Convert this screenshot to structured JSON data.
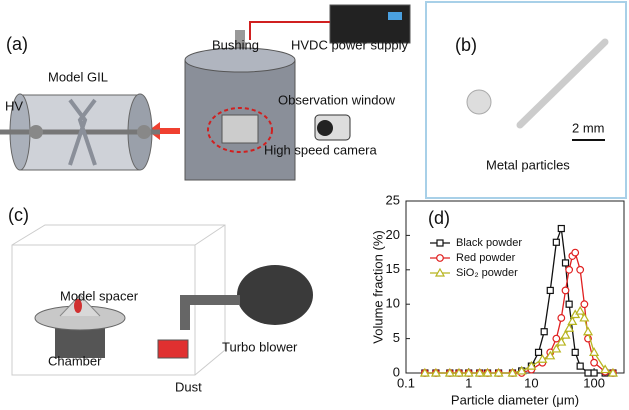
{
  "panels": {
    "a": {
      "label": "(a)",
      "bushing": "Bushing",
      "power": "HVDC power supply",
      "gil": "Model GIL",
      "hv": "HV",
      "window": "Observation window",
      "camera": "High speed camera"
    },
    "b": {
      "label": "(b)",
      "scale": "2 mm",
      "caption": "Metal particles"
    },
    "c": {
      "label": "(c)",
      "spacer": "Model spacer",
      "chamber": "Chamber",
      "blower": "Turbo blower",
      "dust": "Dust"
    }
  },
  "chart_data": {
    "type": "line",
    "label": "(d)",
    "xlabel": "Particle diameter (μm)",
    "ylabel": "Volume fraction (%)",
    "xscale": "log",
    "xlim": [
      0.1,
      300
    ],
    "xticks": [
      0.1,
      1,
      10,
      100
    ],
    "ylim": [
      0,
      25
    ],
    "yticks": [
      0,
      5,
      10,
      15,
      20,
      25
    ],
    "series": [
      {
        "name": "Black powder",
        "color": "#111111",
        "marker": "square",
        "x": [
          0.2,
          0.3,
          0.5,
          0.7,
          1,
          1.5,
          2,
          3,
          5,
          7,
          10,
          13,
          16,
          20,
          25,
          30,
          35,
          40,
          50,
          60,
          80,
          100,
          150,
          200
        ],
        "values": [
          0,
          0,
          0,
          0,
          0,
          0,
          0,
          0,
          0,
          0.3,
          1,
          3,
          6,
          12,
          19,
          21,
          16,
          10,
          3,
          1,
          0,
          0,
          0,
          0
        ]
      },
      {
        "name": "Red powder",
        "color": "#e02020",
        "marker": "circle",
        "x": [
          0.2,
          0.3,
          0.5,
          0.7,
          1,
          1.5,
          2,
          3,
          5,
          7,
          10,
          15,
          20,
          25,
          30,
          35,
          40,
          45,
          50,
          60,
          70,
          80,
          100,
          150,
          200
        ],
        "values": [
          0,
          0,
          0,
          0,
          0,
          0,
          0,
          0,
          0,
          0,
          0.5,
          1.5,
          3,
          5,
          8,
          12,
          15,
          17,
          17.5,
          15,
          10,
          5,
          1.5,
          0.2,
          0
        ]
      },
      {
        "name": "SiO₂ powder",
        "color": "#b8b520",
        "marker": "triangle",
        "x": [
          0.2,
          0.3,
          0.5,
          0.7,
          1,
          1.5,
          2,
          3,
          5,
          7,
          10,
          15,
          20,
          25,
          30,
          35,
          40,
          45,
          50,
          60,
          70,
          80,
          100,
          150,
          200
        ],
        "values": [
          0,
          0,
          0,
          0,
          0,
          0,
          0,
          0,
          0,
          0.3,
          1,
          2,
          2.5,
          3.5,
          4.5,
          5.5,
          6.5,
          7.5,
          8.5,
          9,
          8,
          6,
          3,
          0.5,
          0
        ]
      }
    ]
  }
}
